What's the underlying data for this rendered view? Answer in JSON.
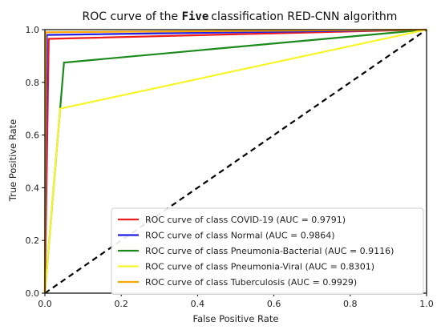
{
  "chart_data": {
    "type": "line",
    "title": {
      "prefix": "ROC curve of the ",
      "highlight": "Five",
      "suffix": "classification RED-CNN algorithm"
    },
    "xlabel": "False Positive Rate",
    "ylabel": "True Positive Rate",
    "xlim": [
      0.0,
      1.0
    ],
    "ylim": [
      0.0,
      1.0
    ],
    "x_ticks": [
      "0.0",
      "0.2",
      "0.4",
      "0.6",
      "0.8",
      "1.0"
    ],
    "y_ticks": [
      "0.0",
      "0.2",
      "0.4",
      "0.6",
      "0.8",
      "1.0"
    ],
    "grid": false,
    "legend_position": "bottom-right",
    "diagonal": {
      "style": "dashed",
      "color": "#000000",
      "points": [
        [
          0,
          0
        ],
        [
          1,
          1
        ]
      ]
    },
    "series": [
      {
        "name": "ROC curve of class COVID-19 (AUC = 0.9791)",
        "color": "#ee1c1c",
        "points": [
          [
            0,
            0
          ],
          [
            0.01,
            0.965
          ],
          [
            1,
            1
          ]
        ]
      },
      {
        "name": "ROC curve of class Normal (AUC = 0.9864)",
        "color": "#1f1fe6",
        "points": [
          [
            0,
            0
          ],
          [
            0.005,
            0.98
          ],
          [
            1,
            1
          ]
        ]
      },
      {
        "name": "ROC curve of class Pneumonia-Bacterial (AUC = 0.9116)",
        "color": "#1a8a1a",
        "points": [
          [
            0,
            0
          ],
          [
            0.05,
            0.875
          ],
          [
            1,
            1
          ]
        ]
      },
      {
        "name": "ROC curve of class Pneumonia-Viral (AUC = 0.8301)",
        "color": "#f5f52a",
        "points": [
          [
            0,
            0
          ],
          [
            0.04,
            0.7
          ],
          [
            1,
            1
          ]
        ]
      },
      {
        "name": "ROC curve of class Tuberculosis (AUC = 0.9929)",
        "color": "#ffa500",
        "points": [
          [
            0,
            0
          ],
          [
            0.002,
            0.99
          ],
          [
            1,
            1
          ]
        ]
      }
    ]
  }
}
